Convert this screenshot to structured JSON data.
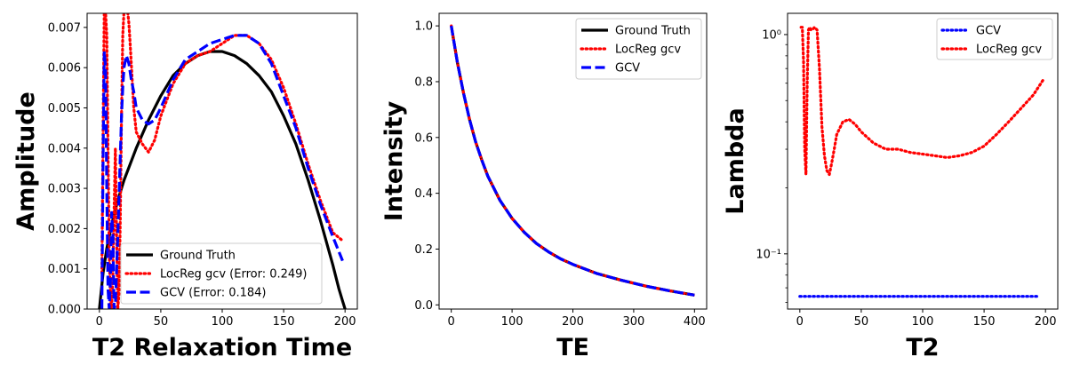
{
  "chart_data": [
    {
      "type": "line",
      "xlabel": "T2 Relaxation Time",
      "ylabel": "Amplitude",
      "xlim": [
        -10,
        210
      ],
      "ylim": [
        0,
        0.00735
      ],
      "xticks": [
        0,
        50,
        100,
        150,
        200
      ],
      "xtick_labels": [
        "0",
        "50",
        "100",
        "150",
        "200"
      ],
      "yticks": [
        0,
        0.001,
        0.002,
        0.003,
        0.004,
        0.005,
        0.006,
        0.007
      ],
      "ytick_labels": [
        "0.000",
        "0.001",
        "0.002",
        "0.003",
        "0.004",
        "0.005",
        "0.006",
        "0.007"
      ],
      "legend_position": "lower-right",
      "series": [
        {
          "name": "Ground Truth",
          "color": "#000000",
          "style": "solid",
          "x": [
            0,
            3,
            6,
            10,
            15,
            20,
            25,
            30,
            40,
            50,
            60,
            70,
            80,
            90,
            100,
            110,
            120,
            130,
            140,
            150,
            160,
            170,
            180,
            190,
            195,
            198,
            200
          ],
          "y": [
            0.0,
            0.0009,
            0.0015,
            0.0021,
            0.0027,
            0.0032,
            0.0036,
            0.004,
            0.0047,
            0.0053,
            0.0058,
            0.0061,
            0.0063,
            0.0064,
            0.0064,
            0.0063,
            0.0061,
            0.0058,
            0.0054,
            0.0048,
            0.0041,
            0.0032,
            0.0022,
            0.0011,
            0.0005,
            0.0002,
            0.0
          ]
        },
        {
          "name": "LocReg gcv (Error: 0.249)",
          "color": "#ff0000",
          "style": "dotted",
          "x": [
            2,
            3,
            4,
            5,
            6,
            7,
            8,
            9,
            10,
            11,
            12,
            13,
            14,
            15,
            16,
            17,
            18,
            19,
            20,
            21,
            22,
            23,
            24,
            25,
            26,
            28,
            30,
            35,
            40,
            45,
            50,
            60,
            70,
            80,
            90,
            100,
            110,
            120,
            130,
            140,
            150,
            160,
            170,
            180,
            190,
            198
          ],
          "y": [
            0.0009,
            0.0045,
            0.0074,
            0.0074,
            0.0068,
            0.004,
            0.0014,
            0.0001,
            0.0,
            0.0009,
            0.0025,
            0.004,
            0.0018,
            0.0,
            0.0004,
            0.0022,
            0.0048,
            0.0068,
            0.0074,
            0.0074,
            0.0074,
            0.0074,
            0.0071,
            0.0066,
            0.0061,
            0.005,
            0.0044,
            0.0041,
            0.0039,
            0.0042,
            0.0048,
            0.0056,
            0.0061,
            0.0063,
            0.0064,
            0.0066,
            0.0068,
            0.0068,
            0.0066,
            0.0062,
            0.0055,
            0.0046,
            0.0036,
            0.0027,
            0.0019,
            0.0017
          ]
        },
        {
          "name": "GCV (Error: 0.184)",
          "color": "#0000ff",
          "style": "dashed",
          "x": [
            2,
            3,
            4,
            5,
            6,
            7,
            8,
            9,
            10,
            11,
            12,
            13,
            14,
            15,
            16,
            17,
            18,
            19,
            20,
            22,
            24,
            26,
            28,
            30,
            35,
            40,
            45,
            50,
            60,
            70,
            80,
            90,
            100,
            110,
            120,
            130,
            140,
            150,
            160,
            170,
            180,
            190,
            198
          ],
          "y": [
            0.0,
            0.0038,
            0.0064,
            0.006,
            0.003,
            0.0005,
            0.0,
            0.0007,
            0.0024,
            0.0018,
            0.0,
            0.0001,
            0.001,
            0.0018,
            0.0028,
            0.0038,
            0.0048,
            0.0055,
            0.006,
            0.0063,
            0.0061,
            0.0057,
            0.0054,
            0.005,
            0.0047,
            0.0046,
            0.0047,
            0.005,
            0.0057,
            0.0062,
            0.0064,
            0.0066,
            0.0067,
            0.0068,
            0.0068,
            0.0066,
            0.0061,
            0.0053,
            0.0045,
            0.0035,
            0.0026,
            0.0018,
            0.0012
          ]
        }
      ]
    },
    {
      "type": "line",
      "xlabel": "TE",
      "ylabel": "Intensity",
      "xlim": [
        -20,
        420
      ],
      "ylim": [
        -0.015,
        1.045
      ],
      "xticks": [
        0,
        100,
        200,
        300,
        400
      ],
      "xtick_labels": [
        "0",
        "100",
        "200",
        "300",
        "400"
      ],
      "yticks": [
        0.0,
        0.2,
        0.4,
        0.6,
        0.8,
        1.0
      ],
      "ytick_labels": [
        "0.0",
        "0.2",
        "0.4",
        "0.6",
        "0.8",
        "1.0"
      ],
      "legend_position": "top-right",
      "series": [
        {
          "name": "Ground Truth",
          "color": "#000000",
          "style": "solid",
          "x": [
            0,
            10,
            20,
            30,
            40,
            50,
            60,
            80,
            100,
            120,
            140,
            160,
            180,
            200,
            240,
            280,
            320,
            360,
            400
          ],
          "y": [
            1.0,
            0.87,
            0.76,
            0.665,
            0.585,
            0.52,
            0.462,
            0.375,
            0.31,
            0.26,
            0.22,
            0.19,
            0.165,
            0.145,
            0.112,
            0.088,
            0.067,
            0.05,
            0.035
          ]
        },
        {
          "name": "LocReg gcv",
          "color": "#ff0000",
          "style": "dotted",
          "x": [
            0,
            10,
            20,
            30,
            40,
            50,
            60,
            80,
            100,
            120,
            140,
            160,
            180,
            200,
            240,
            280,
            320,
            360,
            400
          ],
          "y": [
            1.0,
            0.87,
            0.76,
            0.665,
            0.585,
            0.52,
            0.462,
            0.375,
            0.31,
            0.26,
            0.22,
            0.19,
            0.165,
            0.145,
            0.112,
            0.088,
            0.067,
            0.05,
            0.035
          ]
        },
        {
          "name": "GCV",
          "color": "#0000ff",
          "style": "dashed",
          "x": [
            0,
            10,
            20,
            30,
            40,
            50,
            60,
            80,
            100,
            120,
            140,
            160,
            180,
            200,
            240,
            280,
            320,
            360,
            400
          ],
          "y": [
            1.0,
            0.87,
            0.76,
            0.665,
            0.585,
            0.52,
            0.462,
            0.375,
            0.31,
            0.26,
            0.22,
            0.19,
            0.165,
            0.145,
            0.112,
            0.088,
            0.067,
            0.05,
            0.035
          ]
        }
      ]
    },
    {
      "type": "line",
      "xlabel": "T2",
      "ylabel": "Lambda",
      "xlim": [
        -10,
        210
      ],
      "ylim": [
        0.056,
        1.25
      ],
      "yscale": "log",
      "xticks": [
        0,
        50,
        100,
        150,
        200
      ],
      "xtick_labels": [
        "0",
        "50",
        "100",
        "150",
        "200"
      ],
      "yticks": [
        0.1,
        1.0
      ],
      "ytick_labels": [
        "10⁻¹",
        "10⁰"
      ],
      "minor_yticks": [
        0.06,
        0.07,
        0.08,
        0.09,
        0.2,
        0.3,
        0.4,
        0.5,
        0.6,
        0.7,
        0.8,
        0.9
      ],
      "legend_position": "top-right",
      "series": [
        {
          "name": "GCV",
          "color": "#0000ff",
          "style": "dotted",
          "x": [
            0,
            50,
            100,
            150,
            195
          ],
          "y": [
            0.064,
            0.064,
            0.064,
            0.064,
            0.064
          ]
        },
        {
          "name": "LocReg gcv",
          "color": "#ff0000",
          "style": "dotted",
          "x": [
            1,
            2,
            3,
            4,
            5,
            6,
            7,
            8,
            9,
            10,
            12,
            14,
            16,
            18,
            20,
            22,
            24,
            26,
            28,
            30,
            35,
            40,
            45,
            50,
            60,
            70,
            80,
            90,
            100,
            110,
            120,
            130,
            140,
            150,
            160,
            170,
            180,
            190,
            198
          ],
          "y": [
            1.08,
            1.08,
            0.75,
            0.3,
            0.23,
            0.6,
            1.05,
            1.08,
            1.05,
            1.05,
            1.08,
            1.05,
            0.7,
            0.38,
            0.28,
            0.24,
            0.23,
            0.26,
            0.3,
            0.35,
            0.4,
            0.41,
            0.39,
            0.36,
            0.32,
            0.3,
            0.3,
            0.29,
            0.285,
            0.28,
            0.275,
            0.28,
            0.29,
            0.31,
            0.35,
            0.4,
            0.46,
            0.53,
            0.62
          ]
        }
      ]
    }
  ]
}
